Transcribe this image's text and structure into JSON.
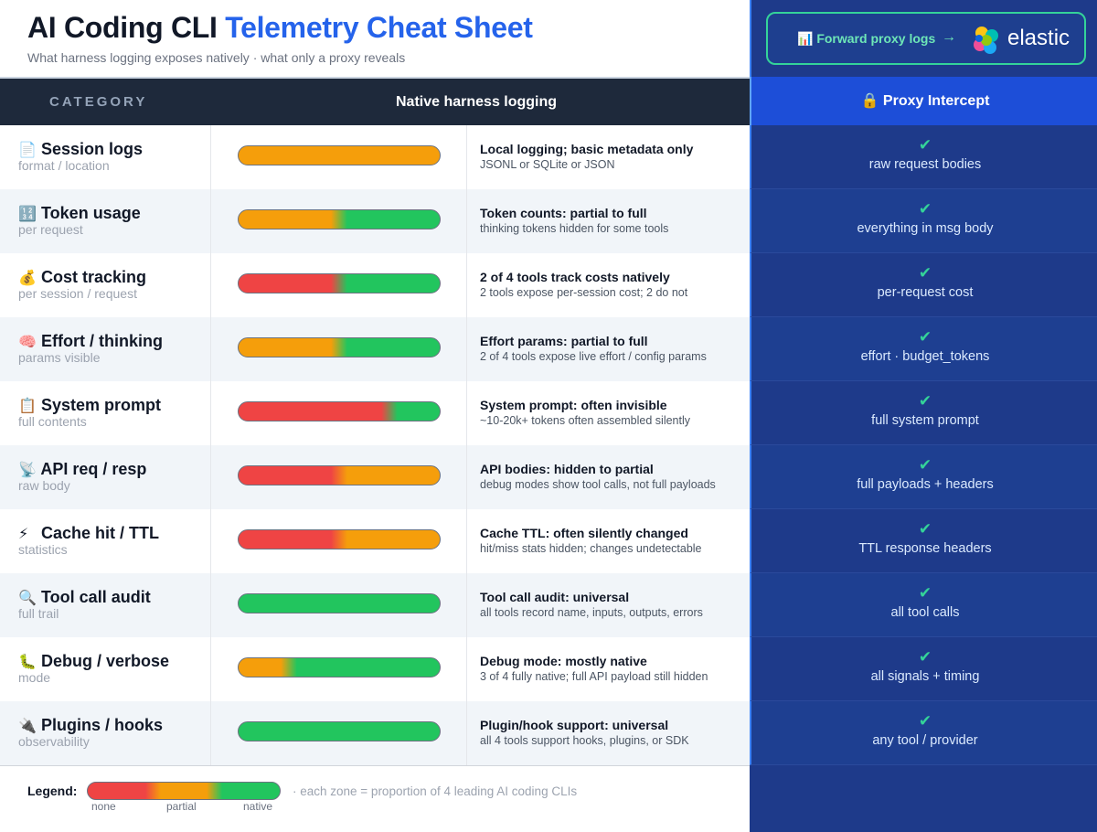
{
  "header": {
    "title_main": "AI Coding CLI",
    "title_accent": "Telemetry Cheat Sheet",
    "subtitle": "What harness logging exposes natively · what only a proxy reveals"
  },
  "forward": {
    "icon": "bar-chart-icon",
    "label": "📊 Forward proxy logs",
    "arrow": "→",
    "brand": "elastic",
    "colors": {
      "border": "#34d399",
      "text": "#6ee7b7"
    }
  },
  "columns": {
    "category": "CATEGORY",
    "native": "Native harness logging",
    "proxy": "🔒 Proxy Intercept"
  },
  "colors": {
    "none": "#ef4444",
    "partial": "#f59e0b",
    "native": "#22c55e",
    "accent": "#2563eb",
    "proxy_bg": "#1e3a8a",
    "check": "#34d399"
  },
  "rows": [
    {
      "icon": "📄",
      "title": "Session logs",
      "sub": "format / location",
      "bar": [
        0,
        1,
        0
      ],
      "desc": "Local logging; basic metadata only",
      "detail": "JSONL or SQLite or JSON",
      "proxy": "raw request bodies"
    },
    {
      "icon": "🔢",
      "title": "Token usage",
      "sub": "per request",
      "bar": [
        0,
        0.5,
        0.5
      ],
      "desc": "Token counts: partial to full",
      "detail": "thinking tokens hidden for some tools",
      "proxy": "everything in msg body"
    },
    {
      "icon": "💰",
      "title": "Cost tracking",
      "sub": "per session / request",
      "bar": [
        0.5,
        0,
        0.5
      ],
      "desc": "2 of 4 tools track costs natively",
      "detail": "2 tools expose per-session cost; 2 do not",
      "proxy": "per-request cost"
    },
    {
      "icon": "🧠",
      "title": "Effort / thinking",
      "sub": "params visible",
      "bar": [
        0,
        0.5,
        0.5
      ],
      "desc": "Effort params: partial to full",
      "detail": "2 of 4 tools expose live effort / config params",
      "proxy": "effort · budget_tokens"
    },
    {
      "icon": "📋",
      "title": "System prompt",
      "sub": "full contents",
      "bar": [
        0.75,
        0,
        0.25
      ],
      "desc": "System prompt: often invisible",
      "detail": "~10-20k+ tokens often assembled silently",
      "proxy": "full system prompt"
    },
    {
      "icon": "📡",
      "title": "API req / resp",
      "sub": "raw body",
      "bar": [
        0.5,
        0.5,
        0
      ],
      "desc": "API bodies: hidden to partial",
      "detail": "debug modes show tool calls, not full payloads",
      "proxy": "full payloads + headers"
    },
    {
      "icon": "⚡",
      "title": "Cache hit / TTL",
      "sub": "statistics",
      "bar": [
        0.5,
        0.5,
        0
      ],
      "desc": "Cache TTL: often silently changed",
      "detail": "hit/miss stats hidden; changes undetectable",
      "proxy": "TTL response headers"
    },
    {
      "icon": "🔍",
      "title": "Tool call audit",
      "sub": "full trail",
      "bar": [
        0,
        0,
        1
      ],
      "desc": "Tool call audit: universal",
      "detail": "all tools record name, inputs, outputs, errors",
      "proxy": "all tool calls"
    },
    {
      "icon": "🐛",
      "title": "Debug / verbose",
      "sub": "mode",
      "bar": [
        0,
        0.25,
        0.75
      ],
      "desc": "Debug mode: mostly native",
      "detail": "3 of 4 fully native; full API payload still hidden",
      "proxy": "all signals + timing"
    },
    {
      "icon": "🔌",
      "title": "Plugins / hooks",
      "sub": "observability",
      "bar": [
        0,
        0,
        1
      ],
      "desc": "Plugin/hook support: universal",
      "detail": "all 4 tools support hooks, plugins, or SDK",
      "proxy": "any tool / provider"
    }
  ],
  "check_mark": "✔",
  "legend": {
    "label": "Legend:",
    "note": "· each zone = proportion of 4 leading AI coding CLIs",
    "ticks": [
      "none",
      "partial",
      "native"
    ]
  }
}
